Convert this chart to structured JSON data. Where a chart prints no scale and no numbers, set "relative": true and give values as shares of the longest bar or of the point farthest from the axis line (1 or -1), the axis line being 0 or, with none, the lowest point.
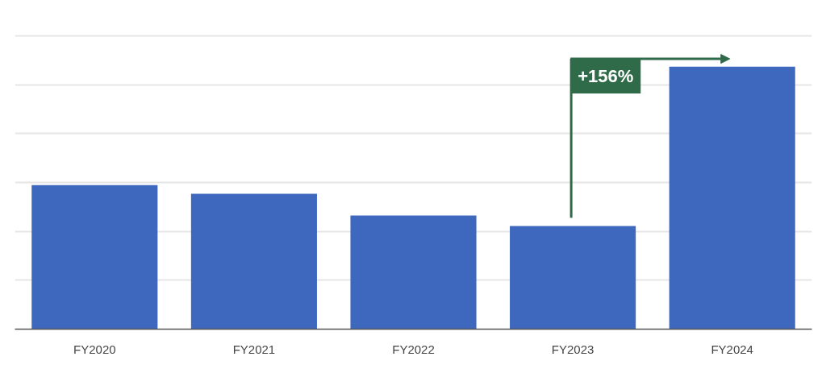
{
  "chart_data": {
    "type": "bar",
    "relative": true,
    "grid": "y",
    "categories": [
      "FY2020",
      "FY2021",
      "FY2022",
      "FY2023",
      "FY2024"
    ],
    "values": [
      0.549,
      0.516,
      0.433,
      0.393,
      1
    ],
    "color": "#3e67be",
    "annotations": [
      "+156%"
    ]
  }
}
